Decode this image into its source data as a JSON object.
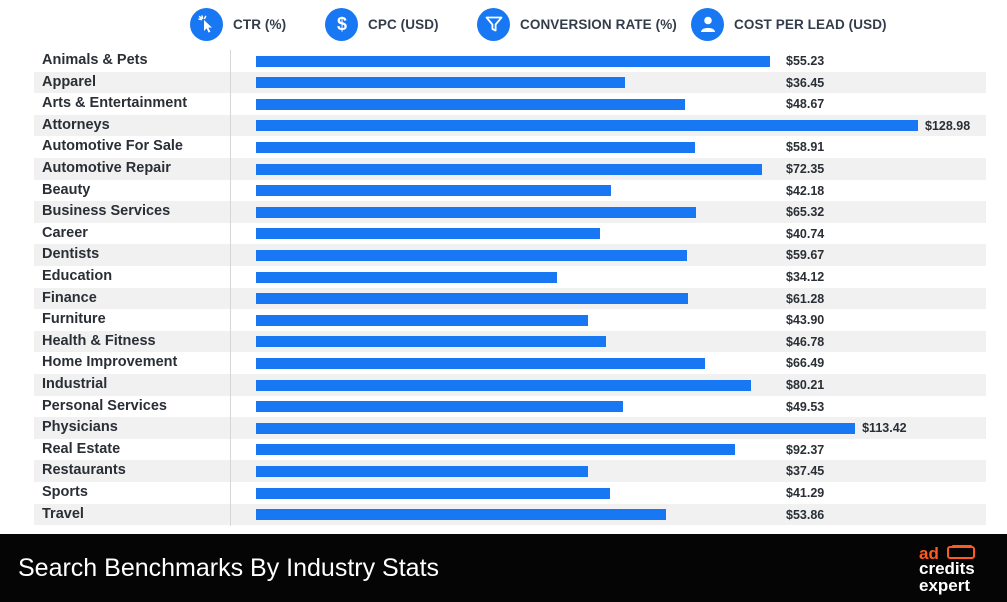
{
  "tabs": [
    {
      "label": "CTR (%)",
      "icon": "cursor-click-icon"
    },
    {
      "label": "CPC (USD)",
      "icon": "dollar-icon"
    },
    {
      "label": "CONVERSION RATE (%)",
      "icon": "funnel-icon"
    },
    {
      "label": "COST PER LEAD (USD)",
      "icon": "user-icon"
    }
  ],
  "footer": {
    "title": "Search Benchmarks By Industry Stats",
    "brand_line1": "ad",
    "brand_line2": "credits",
    "brand_line3": "expert"
  },
  "colors": {
    "accent": "#1877f2",
    "footer_bg": "#050505",
    "row_stripe": "#f1f1f1",
    "brand_orange": "#ff5a1f"
  },
  "chart_data": {
    "type": "bar",
    "orientation": "horizontal",
    "value_prefix": "$",
    "categories": [
      "Animals & Pets",
      "Apparel",
      "Arts & Entertainment",
      "Attorneys",
      "Automotive For Sale",
      "Automotive Repair",
      "Beauty",
      "Business Services",
      "Career",
      "Dentists",
      "Education",
      "Finance",
      "Furniture",
      "Health & Fitness",
      "Home Improvement",
      "Industrial",
      "Personal Services",
      "Physicians",
      "Real Estate",
      "Restaurants",
      "Sports",
      "Travel"
    ],
    "values": [
      55.23,
      36.45,
      48.67,
      128.98,
      58.91,
      72.35,
      42.18,
      65.32,
      40.74,
      59.67,
      34.12,
      61.28,
      43.9,
      46.78,
      66.49,
      80.21,
      49.53,
      113.42,
      92.37,
      37.45,
      41.29,
      53.86
    ],
    "labels": [
      "$55.23",
      "$36.45",
      "$48.67",
      "$128.98",
      "$58.91",
      "$72.35",
      "$42.18",
      "$65.32",
      "$40.74",
      "$59.67",
      "$34.12",
      "$61.28",
      "$43.90",
      "$46.78",
      "$66.49",
      "$80.21",
      "$49.53",
      "$113.42",
      "$92.37",
      "$37.45",
      "$41.29",
      "$53.86"
    ],
    "bar_lengths_relative": [
      0.776,
      0.558,
      0.648,
      1.0,
      0.663,
      0.764,
      0.536,
      0.665,
      0.52,
      0.651,
      0.455,
      0.652,
      0.501,
      0.528,
      0.678,
      0.748,
      0.555,
      0.905,
      0.724,
      0.502,
      0.535,
      0.62
    ],
    "title": "",
    "xlabel": "",
    "ylabel": "",
    "grid": false,
    "legend": "none"
  }
}
